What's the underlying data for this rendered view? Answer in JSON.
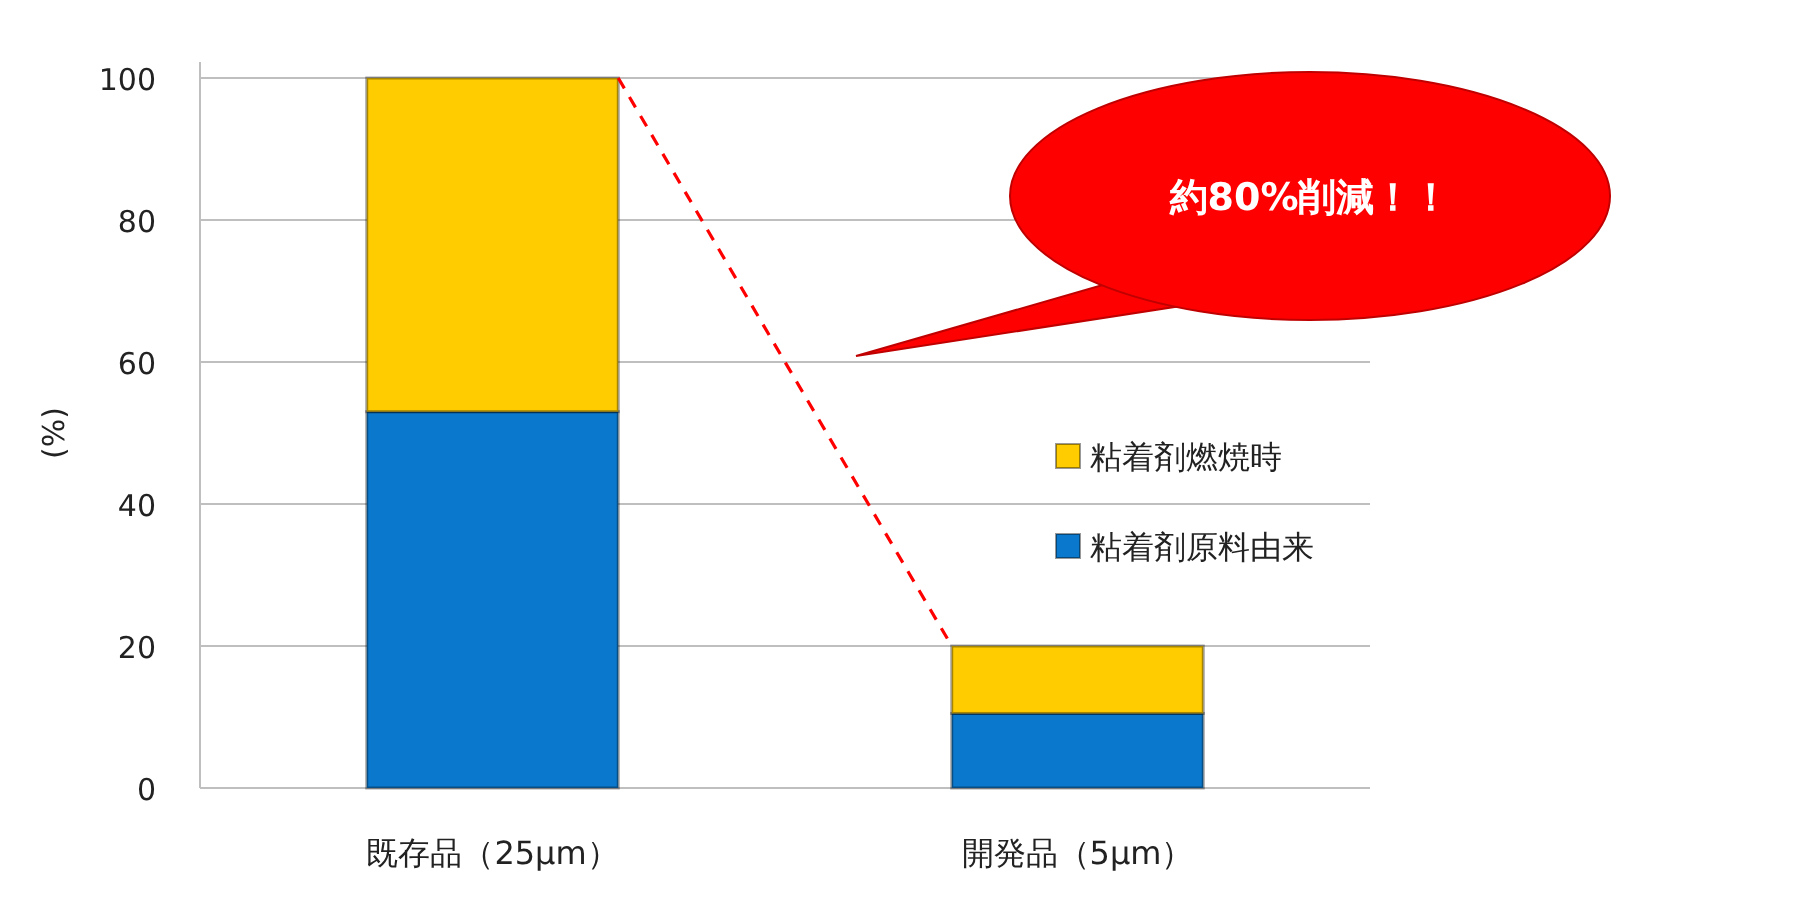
{
  "chart_data": {
    "type": "bar",
    "stacked": true,
    "ylabel": "(%)",
    "categories": [
      "既存品（25μm）",
      "開発品（5μm）"
    ],
    "series": [
      {
        "name": "粘着剤原料由来",
        "color": "#0a78cc",
        "values": [
          53,
          10.5
        ]
      },
      {
        "name": "粘着剤燃焼時",
        "color": "#ffcc00",
        "values": [
          47,
          9.5
        ]
      }
    ],
    "ylim": [
      0,
      100
    ],
    "yticks": [
      0,
      20,
      40,
      60,
      80,
      100
    ],
    "grid": "y",
    "legend": "right",
    "annotations": [
      "約80%削減！！"
    ]
  }
}
